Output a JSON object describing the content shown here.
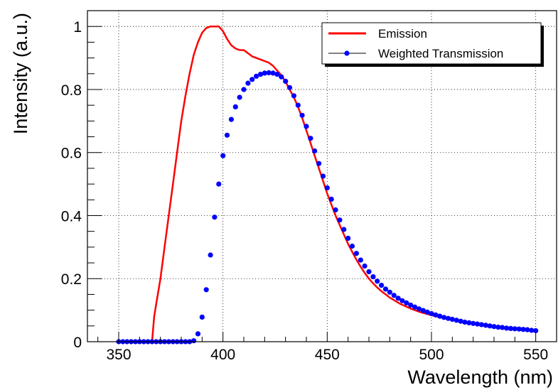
{
  "chart_data": {
    "type": "line",
    "xlabel": "Wavelength (nm)",
    "ylabel": "Intensity (a.u.)",
    "xlim": [
      335,
      560
    ],
    "ylim": [
      0,
      1.05
    ],
    "x_ticks": [
      350,
      400,
      450,
      500,
      550
    ],
    "y_ticks": [
      0,
      0.2,
      0.4,
      0.6,
      0.8,
      1
    ],
    "x_tick_labels": [
      "350",
      "400",
      "450",
      "500",
      "550"
    ],
    "y_tick_labels": [
      "0",
      "0.2",
      "0.4",
      "0.6",
      "0.8",
      "1"
    ],
    "grid": true,
    "legend_position": "top-right",
    "series": [
      {
        "name": "Emission",
        "style": "line",
        "color": "#ff0000",
        "x": [
          366,
          367,
          368,
          370,
          372,
          374,
          376,
          378,
          380,
          382,
          384,
          386,
          388,
          390,
          392,
          394,
          396,
          398,
          400,
          402,
          404,
          406,
          408,
          410,
          412,
          414,
          416,
          418,
          420,
          422,
          424,
          426,
          428,
          430,
          432,
          434,
          436,
          438,
          440,
          442,
          444,
          446,
          448,
          450,
          452,
          454,
          456,
          458,
          460,
          462,
          464,
          466,
          468,
          470,
          472,
          474,
          476,
          478,
          480,
          485,
          490,
          495,
          500,
          505,
          510,
          515,
          520,
          525,
          530,
          535,
          540,
          545,
          550
        ],
        "y": [
          0.0,
          0.08,
          0.12,
          0.2,
          0.3,
          0.4,
          0.5,
          0.6,
          0.7,
          0.78,
          0.85,
          0.91,
          0.95,
          0.98,
          0.995,
          1.0,
          1.0,
          1.0,
          0.985,
          0.96,
          0.94,
          0.93,
          0.925,
          0.925,
          0.915,
          0.905,
          0.9,
          0.895,
          0.89,
          0.885,
          0.875,
          0.86,
          0.845,
          0.825,
          0.8,
          0.775,
          0.745,
          0.71,
          0.67,
          0.63,
          0.59,
          0.55,
          0.51,
          0.47,
          0.435,
          0.4,
          0.37,
          0.34,
          0.31,
          0.285,
          0.26,
          0.238,
          0.218,
          0.2,
          0.185,
          0.172,
          0.16,
          0.15,
          0.14,
          0.12,
          0.105,
          0.093,
          0.084,
          0.076,
          0.069,
          0.063,
          0.058,
          0.053,
          0.049,
          0.045,
          0.042,
          0.039,
          0.036
        ]
      },
      {
        "name": "Weighted Transmission",
        "style": "points",
        "color": "#0000ff",
        "x": [
          350,
          352,
          354,
          356,
          358,
          360,
          362,
          364,
          366,
          368,
          370,
          372,
          374,
          376,
          378,
          380,
          382,
          384,
          386,
          388,
          390,
          392,
          394,
          396,
          398,
          400,
          402,
          404,
          406,
          408,
          410,
          412,
          414,
          416,
          418,
          420,
          422,
          424,
          426,
          428,
          430,
          432,
          434,
          436,
          438,
          440,
          442,
          444,
          446,
          448,
          450,
          452,
          454,
          456,
          458,
          460,
          462,
          464,
          466,
          468,
          470,
          472,
          474,
          476,
          478,
          480,
          482,
          484,
          486,
          488,
          490,
          492,
          494,
          496,
          498,
          500,
          502,
          504,
          506,
          508,
          510,
          512,
          514,
          516,
          518,
          520,
          522,
          524,
          526,
          528,
          530,
          532,
          534,
          536,
          538,
          540,
          542,
          544,
          546,
          548,
          550
        ],
        "y": [
          0,
          0,
          0,
          0,
          0,
          0,
          0,
          0,
          0,
          0,
          0,
          0,
          0,
          0,
          0,
          0,
          0,
          0,
          0.003,
          0.025,
          0.078,
          0.165,
          0.275,
          0.395,
          0.5,
          0.59,
          0.655,
          0.705,
          0.745,
          0.775,
          0.8,
          0.82,
          0.832,
          0.842,
          0.848,
          0.852,
          0.853,
          0.852,
          0.848,
          0.84,
          0.826,
          0.806,
          0.78,
          0.75,
          0.718,
          0.683,
          0.645,
          0.605,
          0.565,
          0.525,
          0.488,
          0.452,
          0.418,
          0.386,
          0.356,
          0.328,
          0.303,
          0.28,
          0.259,
          0.24,
          0.222,
          0.206,
          0.192,
          0.179,
          0.167,
          0.157,
          0.147,
          0.138,
          0.13,
          0.123,
          0.116,
          0.11,
          0.104,
          0.099,
          0.094,
          0.089,
          0.085,
          0.081,
          0.077,
          0.074,
          0.071,
          0.068,
          0.065,
          0.062,
          0.06,
          0.058,
          0.056,
          0.054,
          0.052,
          0.05,
          0.048,
          0.046,
          0.045,
          0.043,
          0.042,
          0.041,
          0.04,
          0.039,
          0.038,
          0.036,
          0.035
        ]
      }
    ]
  }
}
